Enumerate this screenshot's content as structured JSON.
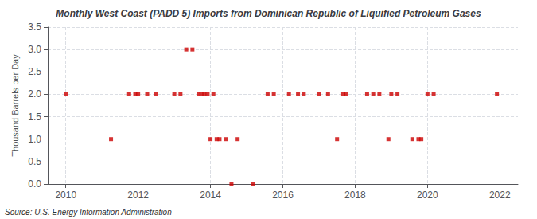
{
  "chart_data": {
    "type": "scatter",
    "title": "Monthly West Coast (PADD 5) Imports from Dominican Republic of Liquified Petroleum Gases",
    "ylabel": "Thousand Barrels per Day",
    "annotations": [
      "Source: U.S. Energy Information Administration"
    ],
    "x": [
      2010.0,
      2011.25,
      2011.75,
      2011.92,
      2012.0,
      2012.25,
      2012.5,
      2013.0,
      2013.17,
      2013.33,
      2013.5,
      2013.67,
      2013.75,
      2013.83,
      2013.92,
      2014.0,
      2014.08,
      2014.17,
      2014.25,
      2014.42,
      2014.58,
      2014.75,
      2015.17,
      2015.58,
      2015.75,
      2016.17,
      2016.42,
      2016.58,
      2017.0,
      2017.25,
      2017.5,
      2017.67,
      2017.75,
      2018.33,
      2018.5,
      2018.67,
      2018.92,
      2019.0,
      2019.17,
      2019.58,
      2019.75,
      2019.83,
      2020.0,
      2020.17,
      2021.92
    ],
    "values": [
      2.0,
      1.0,
      2.0,
      2.0,
      2.0,
      2.0,
      2.0,
      2.0,
      2.0,
      3.0,
      3.0,
      2.0,
      2.0,
      2.0,
      2.0,
      1.0,
      2.0,
      1.0,
      1.0,
      1.0,
      0.0,
      1.0,
      0.0,
      2.0,
      2.0,
      2.0,
      2.0,
      2.0,
      2.0,
      2.0,
      1.0,
      2.0,
      2.0,
      2.0,
      2.0,
      2.0,
      1.0,
      2.0,
      2.0,
      1.0,
      1.0,
      1.0,
      2.0,
      2.0,
      2.0
    ],
    "color": "#cc0000",
    "marker": "square",
    "xlim": [
      2009.5,
      2022.5
    ],
    "xticks": [
      2010,
      2012,
      2014,
      2016,
      2018,
      2020,
      2022
    ],
    "ylim": [
      0.0,
      3.5
    ],
    "yticks": [
      {
        "value": 0,
        "label": "0.0"
      },
      0.5,
      {
        "value": 1,
        "label": "1.0"
      },
      1.5,
      {
        "value": 2,
        "label": "2.0"
      },
      2.5,
      {
        "value": 3,
        "label": "3.0"
      },
      3.5
    ],
    "grid": true
  }
}
